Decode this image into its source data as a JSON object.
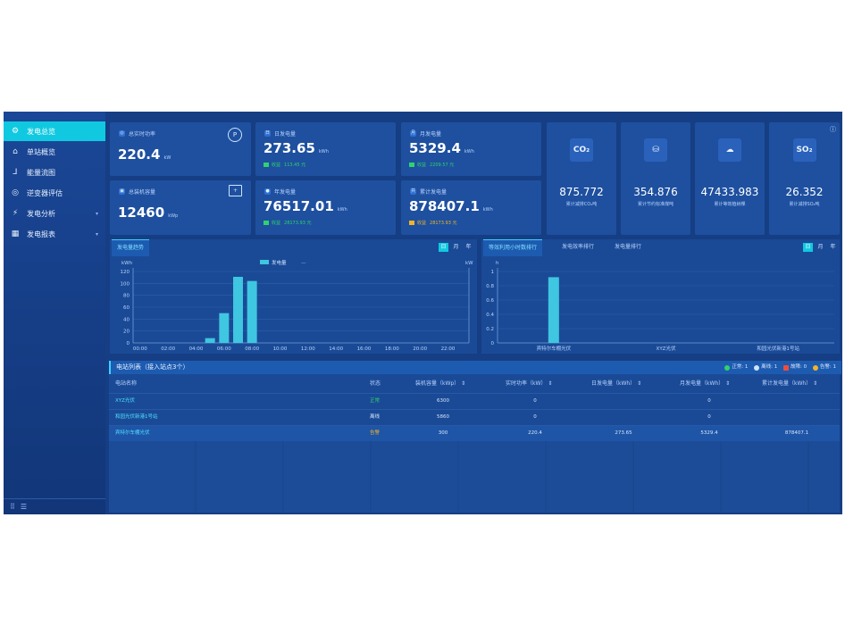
{
  "nav": [
    {
      "label": "发电总览",
      "icon": "gear-icon",
      "active": true
    },
    {
      "label": "单站概览",
      "icon": "home-icon"
    },
    {
      "label": "能量流图",
      "icon": "flow-icon"
    },
    {
      "label": "逆变器评估",
      "icon": "inverter-icon"
    },
    {
      "label": "发电分析",
      "icon": "analysis-icon",
      "expandable": true
    },
    {
      "label": "发电报表",
      "icon": "report-icon",
      "expandable": true
    }
  ],
  "footer": {
    "grid_icon": "⠿",
    "menu_icon": "☰"
  },
  "cards": {
    "realtime_power": {
      "title": "总实时功率",
      "value": "220.4",
      "unit": "kW",
      "badge": "P"
    },
    "day_energy": {
      "title": "日发电量",
      "value": "273.65",
      "unit": "kWh",
      "earn_label": "收益",
      "earn_value": "113.45 元"
    },
    "month_energy": {
      "title": "月发电量",
      "value": "5329.4",
      "unit": "kWh",
      "earn_label": "收益",
      "earn_value": "2209.57 元"
    },
    "installed": {
      "title": "总装机容量",
      "value": "12460",
      "unit": "kWp"
    },
    "year_energy": {
      "title": "年发电量",
      "value": "76517.01",
      "unit": "kWh",
      "earn_label": "收益",
      "earn_value": "28173.93 元"
    },
    "total_energy": {
      "title": "累计发电量",
      "value": "878407.1",
      "unit": "kWh",
      "earn_label": "收益",
      "earn_value": "28173.93 元"
    }
  },
  "env": [
    {
      "icon": "CO₂",
      "value": "875.772",
      "label": "累计减排CO₂吨"
    },
    {
      "icon": "⛁",
      "value": "354.876",
      "label": "累计节约标准煤吨"
    },
    {
      "icon": "☁",
      "value": "47433.983",
      "label": "累计等效植树棵"
    },
    {
      "icon": "SO₂",
      "value": "26.352",
      "label": "累计减排SO₂吨"
    }
  ],
  "trend_panel": {
    "tab": "发电量趋势",
    "periods": [
      "日",
      "月",
      "年"
    ],
    "active_period": "日"
  },
  "rank_panel": {
    "tabs": [
      "等效利用小时数排行",
      "发电效率排行",
      "发电量排行"
    ],
    "active_tab": 0,
    "periods": [
      "日",
      "月",
      "年"
    ],
    "active_period": "日"
  },
  "chart_data": [
    {
      "type": "bar",
      "ylabel": "kWh",
      "y2label": "kW",
      "legend": [
        "发电量",
        "—"
      ],
      "categories": [
        "00:00",
        "01:00",
        "02:00",
        "03:00",
        "04:00",
        "05:00",
        "06:00",
        "07:00",
        "08:00",
        "09:00",
        "10:00",
        "11:00",
        "12:00",
        "13:00",
        "14:00",
        "15:00",
        "16:00",
        "17:00",
        "18:00",
        "19:00",
        "20:00",
        "21:00",
        "22:00",
        "23:00"
      ],
      "tick_labels": [
        "00:00",
        "02:00",
        "04:00",
        "06:00",
        "08:00",
        "10:00",
        "12:00",
        "14:00",
        "16:00",
        "18:00",
        "20:00",
        "22:00"
      ],
      "values": [
        0,
        0,
        0,
        0,
        0,
        8,
        50,
        111,
        104,
        0,
        0,
        0,
        0,
        0,
        0,
        0,
        0,
        0,
        0,
        0,
        0,
        0,
        0,
        0
      ],
      "ylim": [
        0,
        120
      ],
      "yticks": [
        0,
        20,
        40,
        60,
        80,
        100,
        120
      ],
      "color": "#3fc6e0"
    },
    {
      "type": "bar",
      "ylabel": "h",
      "categories": [
        "宾特尔车棚光伏",
        "XYZ光伏",
        "和园光伏新港1号站"
      ],
      "values": [
        0.92,
        0,
        0
      ],
      "ylim": [
        0,
        1
      ],
      "yticks": [
        0,
        0.2,
        0.4,
        0.6,
        0.8,
        1
      ],
      "color": "#3fc6e0"
    }
  ],
  "table": {
    "title": "电站列表（接入站点3个）",
    "status_legend": [
      {
        "label": "正常:",
        "count": "1",
        "color": "#2fd36c"
      },
      {
        "label": "离线:",
        "count": "1",
        "color": "#cfe3ff"
      },
      {
        "label": "故障:",
        "count": "0",
        "color": "#ef4c3c"
      },
      {
        "label": "告警:",
        "count": "1",
        "color": "#f0b429"
      }
    ],
    "columns": [
      "电站名称",
      "状态",
      "装机容量（kWp） ⇕",
      "实时功率（kW） ⇕",
      "日发电量（kWh） ⇕",
      "月发电量（kWh） ⇕",
      "累计发电量（kWh） ⇕"
    ],
    "rows": [
      {
        "name": "XYZ光伏",
        "status": "正常",
        "status_type": "ok",
        "capacity": "6300",
        "power": "0",
        "day": "",
        "month": "0",
        "total": ""
      },
      {
        "name": "和园光伏新港1号站",
        "status": "离线",
        "status_type": "off",
        "capacity": "5860",
        "power": "0",
        "day": "",
        "month": "0",
        "total": ""
      },
      {
        "name": "宾特尔车棚光伏",
        "status": "告警",
        "status_type": "warn",
        "capacity": "300",
        "power": "220.4",
        "day": "273.65",
        "month": "5329.4",
        "total": "878407.1"
      }
    ]
  }
}
